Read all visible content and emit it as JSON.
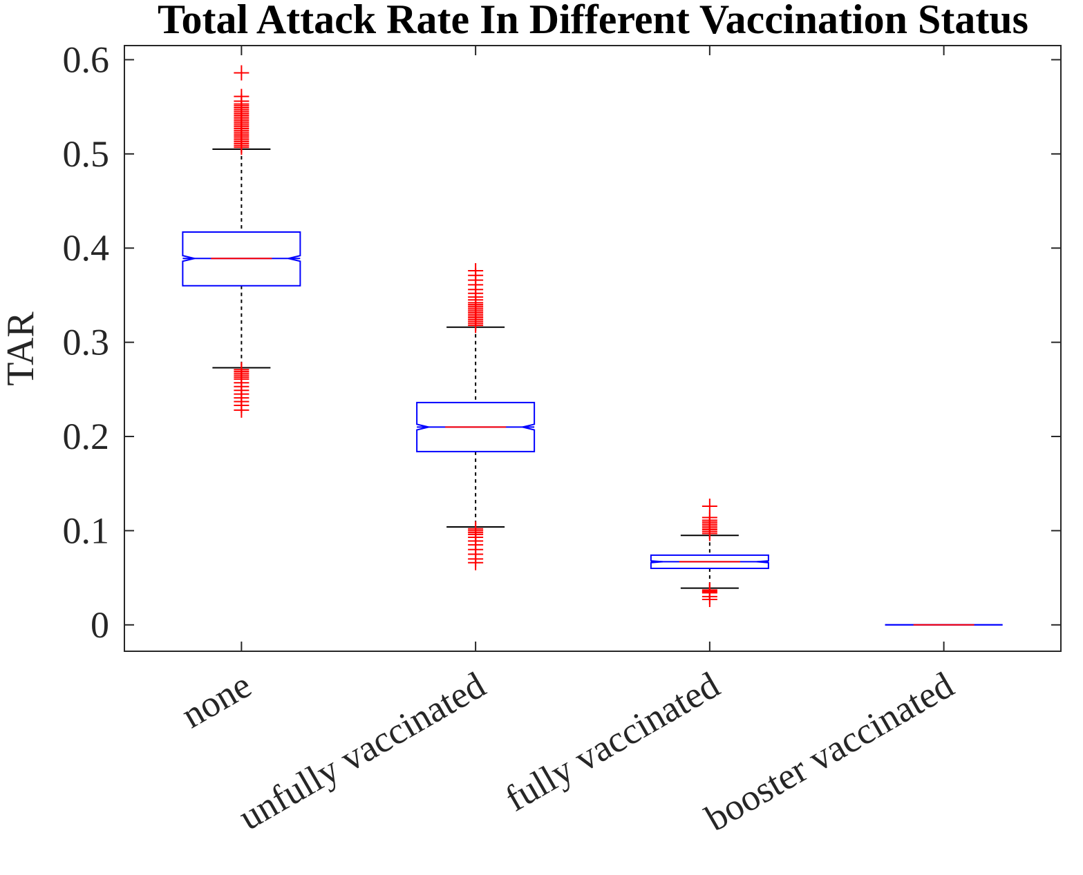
{
  "chart_data": {
    "type": "boxplot",
    "title": "Total Attack Rate In Different Vaccination Status",
    "xlabel": "",
    "ylabel": "TAR",
    "ylim": [
      -0.028,
      0.615
    ],
    "yticks": [
      0,
      0.1,
      0.2,
      0.3,
      0.4,
      0.5,
      0.6
    ],
    "ytick_labels": [
      "0",
      "0.1",
      "0.2",
      "0.3",
      "0.4",
      "0.5",
      "0.6"
    ],
    "grid": false,
    "notched": true,
    "categories": [
      "none",
      "unfully vaccinated",
      "fully vaccinated",
      "booster vaccinated"
    ],
    "boxes": [
      {
        "q1": 0.36,
        "median": 0.389,
        "q3": 0.417,
        "whisker_low": 0.273,
        "whisker_high": 0.505,
        "notch_low": 0.386,
        "notch_high": 0.392,
        "outliers_high": [
          0.507,
          0.509,
          0.511,
          0.513,
          0.515,
          0.517,
          0.519,
          0.521,
          0.523,
          0.525,
          0.527,
          0.529,
          0.531,
          0.533,
          0.535,
          0.537,
          0.539,
          0.541,
          0.543,
          0.545,
          0.547,
          0.549,
          0.551,
          0.553,
          0.556,
          0.561,
          0.586
        ],
        "outliers_low": [
          0.271,
          0.269,
          0.267,
          0.265,
          0.263,
          0.261,
          0.257,
          0.253,
          0.249,
          0.245,
          0.241,
          0.237,
          0.233,
          0.228
        ]
      },
      {
        "q1": 0.184,
        "median": 0.21,
        "q3": 0.236,
        "whisker_low": 0.104,
        "whisker_high": 0.316,
        "notch_low": 0.207,
        "notch_high": 0.213,
        "outliers_high": [
          0.318,
          0.32,
          0.322,
          0.324,
          0.326,
          0.328,
          0.33,
          0.332,
          0.334,
          0.336,
          0.338,
          0.34,
          0.342,
          0.345,
          0.348,
          0.352,
          0.356,
          0.361,
          0.366,
          0.371,
          0.376
        ],
        "outliers_low": [
          0.102,
          0.1,
          0.098,
          0.096,
          0.093,
          0.089,
          0.085,
          0.08,
          0.075,
          0.07,
          0.066
        ]
      },
      {
        "q1": 0.06,
        "median": 0.067,
        "q3": 0.074,
        "whisker_low": 0.039,
        "whisker_high": 0.095,
        "notch_low": 0.066,
        "notch_high": 0.068,
        "outliers_high": [
          0.097,
          0.099,
          0.101,
          0.103,
          0.105,
          0.107,
          0.109,
          0.111,
          0.114,
          0.126
        ],
        "outliers_low": [
          0.037,
          0.036,
          0.035,
          0.034,
          0.03,
          0.027
        ]
      },
      {
        "q1": 0.0,
        "median": 0.0,
        "q3": 0.0,
        "whisker_low": 0.0,
        "whisker_high": 0.0,
        "notch_low": 0.0,
        "notch_high": 0.0,
        "outliers_high": [],
        "outliers_low": []
      }
    ],
    "colors": {
      "box": "#0000ff",
      "median": "#ff0000",
      "whisker": "#000000",
      "outlier": "#ff0000",
      "axis": "#262626"
    }
  }
}
